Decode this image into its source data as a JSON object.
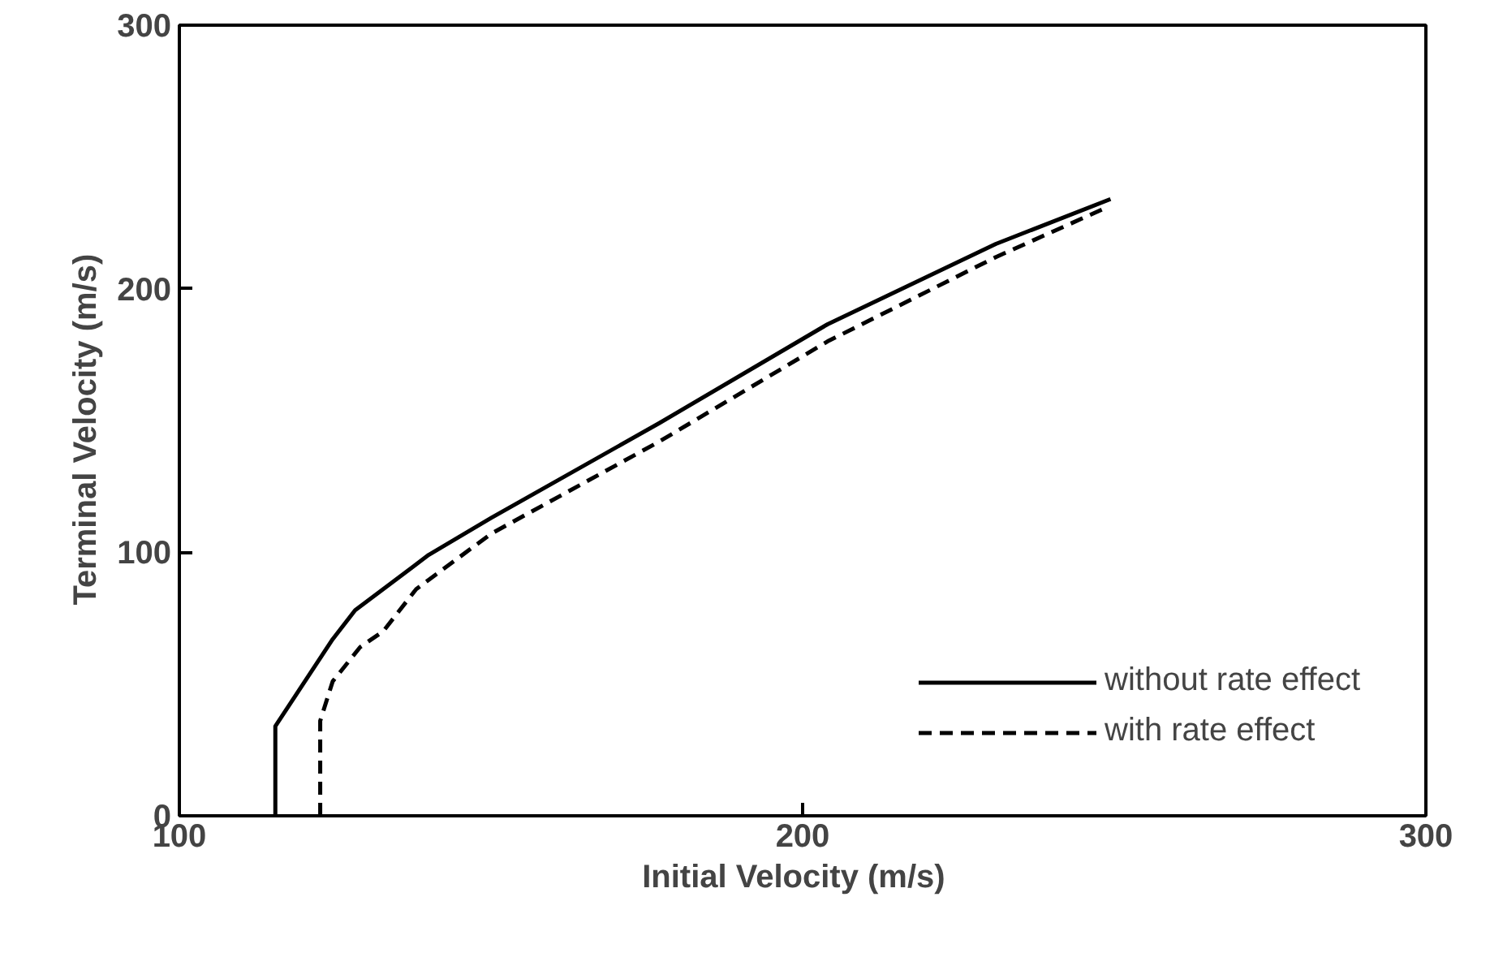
{
  "chart_data": {
    "type": "line",
    "xlabel": "Initial  Velocity  (m/s)",
    "ylabel": "Terminal  Velocity  (m/s)",
    "xlim": [
      100,
      300
    ],
    "ylim": [
      0,
      300
    ],
    "xticks": [
      100,
      200,
      300
    ],
    "yticks": [
      0,
      100,
      200,
      300
    ],
    "grid": false,
    "legend": "bottom right",
    "marker": "none",
    "series": [
      {
        "name": "without rate effect",
        "color": "#000000",
        "line_style": "solid",
        "x": [
          115.4,
          115.4,
          124.6,
          128.2,
          140,
          150,
          177,
          204,
          231,
          249.4
        ],
        "values": [
          0,
          34,
          67,
          78,
          99,
          113,
          149,
          186.5,
          217,
          234
        ]
      },
      {
        "name": "with rate effect",
        "color": "#000000",
        "line_style": "dashed",
        "x": [
          122.6,
          122.6,
          124.6,
          129,
          132.7,
          138,
          150,
          177,
          204,
          231,
          248
        ],
        "values": [
          0,
          36,
          51,
          64,
          70,
          86,
          107,
          142,
          180,
          212,
          230
        ]
      }
    ]
  }
}
